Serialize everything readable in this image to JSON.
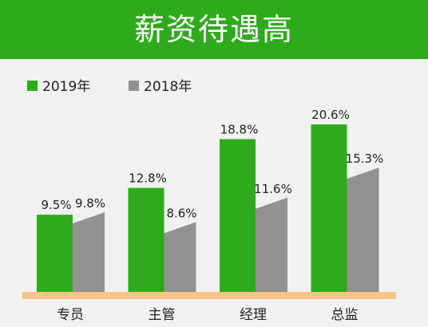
{
  "title": "薪资待遇高",
  "colors": {
    "title_bar": "#2faa1c",
    "series_2019": "#2faa1c",
    "series_2018": "#949191",
    "baseline": "#f6c58a",
    "background": "#f1f1f1"
  },
  "chart_data": {
    "type": "bar",
    "title": "薪资待遇高",
    "categories": [
      "专员",
      "主管",
      "经理",
      "总监"
    ],
    "series": [
      {
        "name": "2019年",
        "values": [
          9.5,
          12.8,
          18.8,
          20.6
        ],
        "labels": [
          "9.5%",
          "12.8%",
          "18.8%",
          "20.6%"
        ]
      },
      {
        "name": "2018年",
        "values": [
          9.8,
          8.6,
          11.6,
          15.3
        ],
        "labels": [
          "9.8%",
          "8.6%",
          "11.6%",
          "15.3%"
        ]
      }
    ],
    "unit": "%",
    "ylim": [
      0,
      23
    ],
    "grid": false,
    "legend": "top-left"
  }
}
